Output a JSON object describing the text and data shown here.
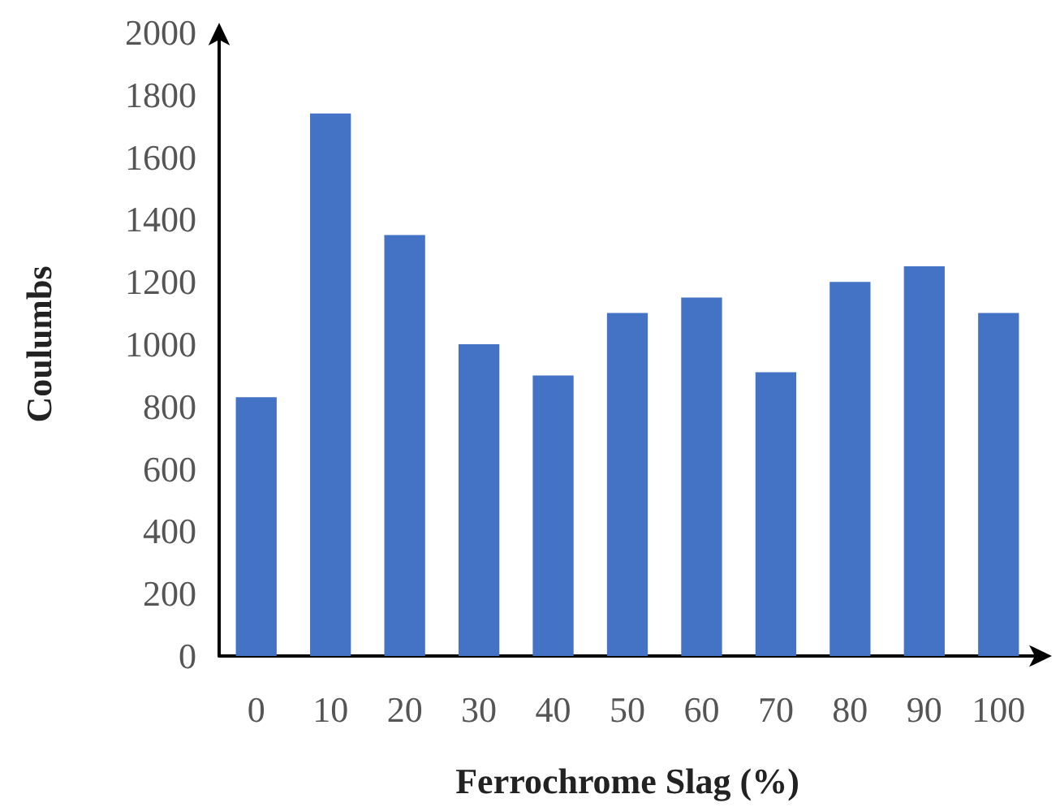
{
  "chart_data": {
    "type": "bar",
    "xlabel": "Ferrochrome Slag (%)",
    "ylabel": "Coulumbs",
    "categories": [
      "0",
      "10",
      "20",
      "30",
      "40",
      "50",
      "60",
      "70",
      "80",
      "90",
      "100"
    ],
    "values": [
      830,
      1740,
      1350,
      1000,
      900,
      1100,
      1150,
      910,
      1200,
      1250,
      1100
    ],
    "color": "#4472c4",
    "ylim": [
      0,
      2000
    ],
    "yticks": [
      0,
      200,
      400,
      600,
      800,
      1000,
      1200,
      1400,
      1600,
      1800,
      2000
    ],
    "grid": false
  }
}
